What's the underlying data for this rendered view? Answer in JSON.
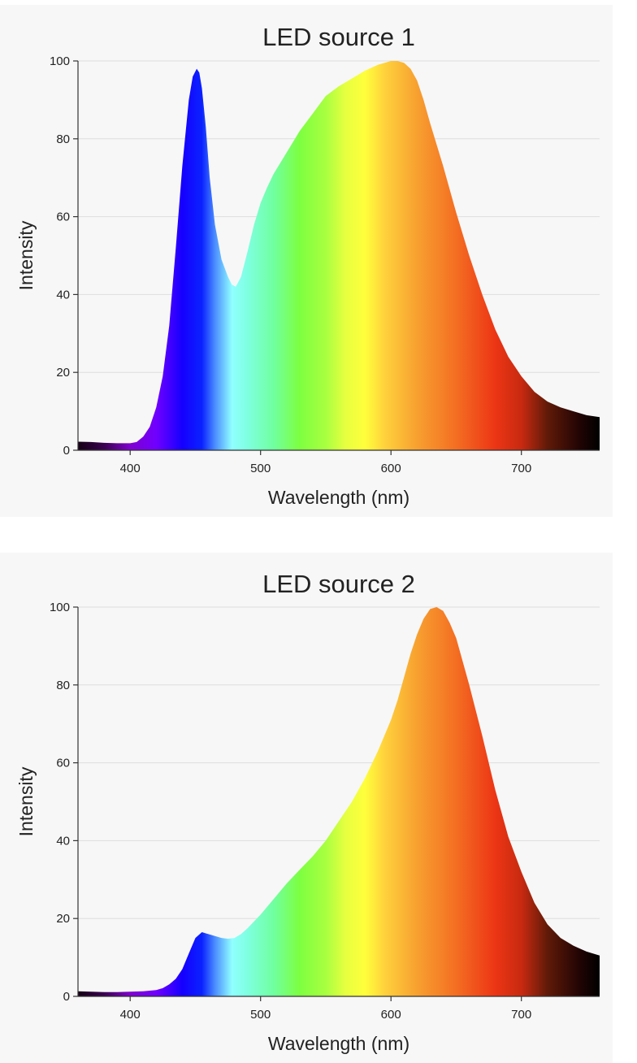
{
  "chart_data": [
    {
      "type": "area",
      "title": "LED source 1",
      "xlabel": "Wavelength (nm)",
      "ylabel": "Intensity",
      "xlim": [
        360,
        760
      ],
      "ylim": [
        0,
        100
      ],
      "xticks": [
        400,
        500,
        600,
        700
      ],
      "yticks": [
        0,
        20,
        40,
        60,
        80,
        100
      ],
      "grid": true,
      "fill": "visible-spectrum color gradient",
      "series": [
        {
          "x": [
            360,
            370,
            380,
            390,
            400,
            405,
            410,
            415,
            420,
            425,
            430,
            435,
            440,
            445,
            448,
            451,
            453,
            455,
            458,
            461,
            465,
            470,
            475,
            478,
            481,
            485,
            490,
            495,
            500,
            505,
            510,
            520,
            530,
            540,
            550,
            560,
            570,
            580,
            590,
            600,
            605,
            610,
            615,
            620,
            625,
            630,
            640,
            650,
            660,
            670,
            680,
            690,
            700,
            710,
            720,
            730,
            740,
            750,
            760
          ],
          "y": [
            2.2,
            2.1,
            1.9,
            1.8,
            1.8,
            2.1,
            3.5,
            6,
            11,
            19,
            32,
            52,
            73,
            90,
            96,
            98,
            97,
            93,
            83,
            70,
            58,
            49,
            44.5,
            42.5,
            42,
            44.5,
            51,
            58,
            63.5,
            67.5,
            71,
            76.5,
            82,
            86.5,
            91,
            93.5,
            95.5,
            97.5,
            99,
            100,
            100,
            99.5,
            98,
            95,
            90,
            84,
            73,
            61,
            50,
            40,
            31,
            24,
            19,
            15,
            12.5,
            11,
            10,
            9,
            8.5
          ]
        }
      ]
    },
    {
      "type": "area",
      "title": "LED source 2",
      "xlabel": "Wavelength (nm)",
      "ylabel": "Intensity",
      "xlim": [
        360,
        760
      ],
      "ylim": [
        0,
        100
      ],
      "xticks": [
        400,
        500,
        600,
        700
      ],
      "yticks": [
        0,
        20,
        40,
        60,
        80,
        100
      ],
      "grid": true,
      "fill": "visible-spectrum color gradient",
      "series": [
        {
          "x": [
            360,
            370,
            380,
            390,
            400,
            410,
            420,
            425,
            430,
            435,
            440,
            445,
            450,
            455,
            460,
            465,
            470,
            475,
            480,
            485,
            490,
            500,
            510,
            520,
            530,
            540,
            550,
            560,
            570,
            580,
            590,
            600,
            605,
            610,
            615,
            620,
            625,
            630,
            635,
            640,
            645,
            650,
            660,
            670,
            680,
            690,
            700,
            710,
            720,
            730,
            740,
            750,
            760
          ],
          "y": [
            1.3,
            1.2,
            1.1,
            1.1,
            1.2,
            1.3,
            1.6,
            2.1,
            3.1,
            4.5,
            7,
            11,
            15,
            16.5,
            16,
            15.5,
            15,
            14.8,
            15,
            16,
            17.5,
            21,
            25,
            29,
            32.5,
            36,
            40,
            45,
            50,
            56,
            63,
            71,
            76,
            82,
            88,
            93,
            97,
            99.5,
            100,
            99,
            96,
            92,
            80,
            67,
            53,
            41,
            32,
            24,
            18.5,
            15,
            13,
            11.5,
            10.5
          ]
        }
      ]
    }
  ]
}
